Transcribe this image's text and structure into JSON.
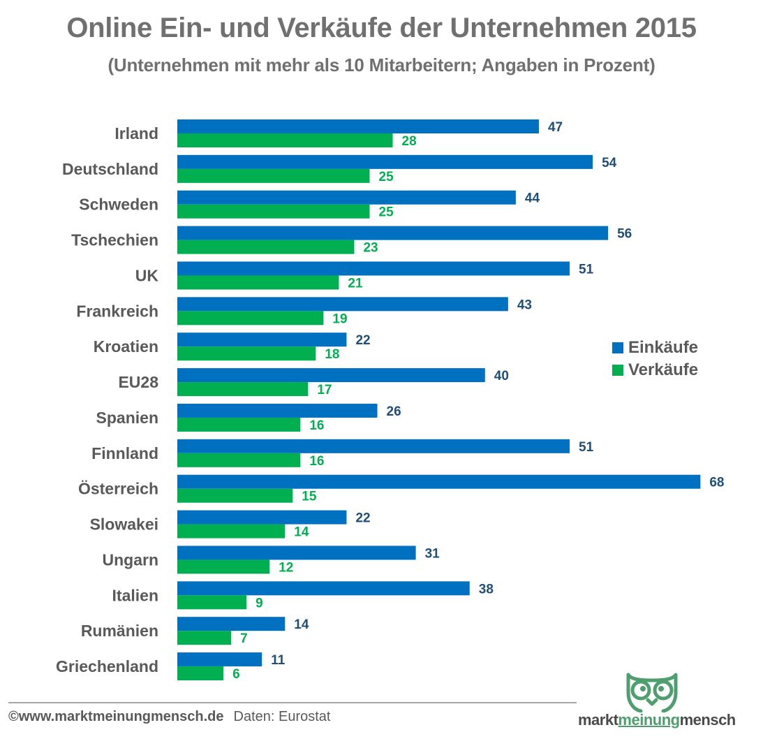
{
  "header": {
    "title": "Online Ein- und Verkäufe der Unternehmen 2015",
    "subtitle": "(Unternehmen mit mehr als 10 Mitarbeitern; Angaben in Prozent)"
  },
  "colors": {
    "einkaeufe": "#0070C0",
    "verkaeufe": "#00B050",
    "einkaeufe_label": "#1F4E79",
    "verkaeufe_label": "#00B050",
    "logo_green": "#4E9E6E"
  },
  "chart_data": {
    "type": "bar",
    "orientation": "horizontal",
    "title": "Online Ein- und Verkäufe der Unternehmen 2015",
    "subtitle": "(Unternehmen mit mehr als 10 Mitarbeitern; Angaben in Prozent)",
    "xlabel": "",
    "ylabel": "",
    "xlim": [
      0,
      70
    ],
    "grid": false,
    "legend_position": "right",
    "categories": [
      "Irland",
      "Deutschland",
      "Schweden",
      "Tschechien",
      "UK",
      "Frankreich",
      "Kroatien",
      "EU28",
      "Spanien",
      "Finnland",
      "Österreich",
      "Slowakei",
      "Ungarn",
      "Italien",
      "Rumänien",
      "Griechenland"
    ],
    "series": [
      {
        "name": "Einkäufe",
        "values": [
          47,
          54,
          44,
          56,
          51,
          43,
          22,
          40,
          26,
          51,
          68,
          22,
          31,
          38,
          14,
          11
        ]
      },
      {
        "name": "Verkäufe",
        "values": [
          28,
          25,
          25,
          23,
          21,
          19,
          18,
          17,
          16,
          16,
          15,
          14,
          12,
          9,
          7,
          6
        ]
      }
    ]
  },
  "legend": {
    "items": [
      {
        "label": "Einkäufe"
      },
      {
        "label": "Verkäufe"
      }
    ]
  },
  "footer": {
    "copyright": "©www.marktmeinungmensch.de",
    "source": "Daten: Eurostat"
  },
  "logo": {
    "icon": "owl-icon",
    "text_left": "markt",
    "text_mid": "meinung",
    "text_right": "mensch"
  }
}
